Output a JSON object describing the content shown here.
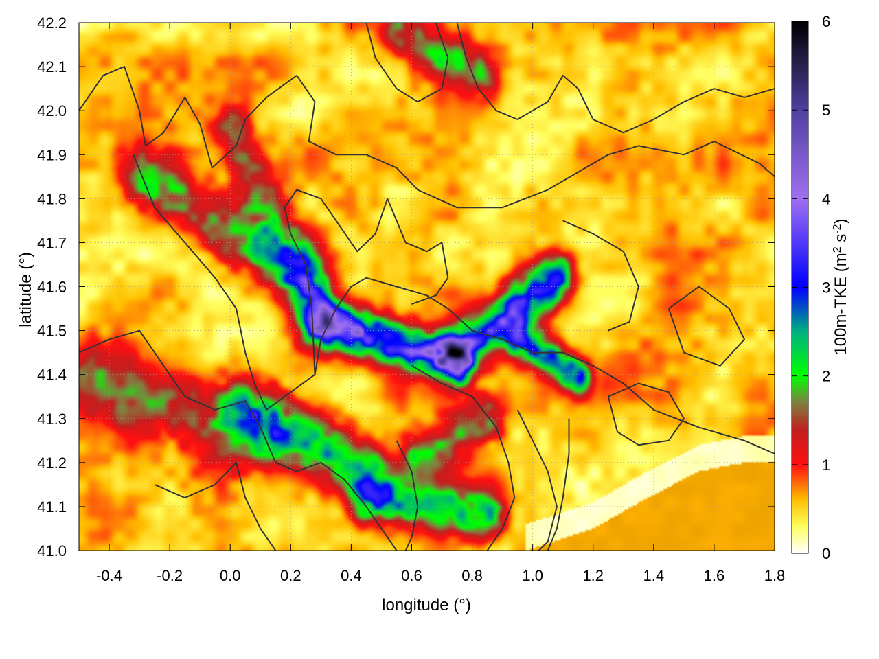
{
  "chart_data": {
    "type": "heatmap",
    "title": "",
    "xlabel": "longitude (°)",
    "ylabel": "latitude (°)",
    "xlim": [
      -0.5,
      1.8
    ],
    "ylim": [
      41.0,
      42.2
    ],
    "x_ticks": [
      -0.4,
      -0.2,
      0.0,
      0.2,
      0.4,
      0.6,
      0.8,
      1.0,
      1.2,
      1.4,
      1.6,
      1.8
    ],
    "x_tick_labels": [
      "-0.4",
      "-0.2",
      "0.0",
      "0.2",
      "0.4",
      "0.6",
      "0.8",
      "1.0",
      "1.2",
      "1.4",
      "1.6",
      "1.8"
    ],
    "y_ticks": [
      41.0,
      41.1,
      41.2,
      41.3,
      41.4,
      41.5,
      41.6,
      41.7,
      41.8,
      41.9,
      42.0,
      42.1,
      42.2
    ],
    "y_tick_labels": [
      "41.0",
      "41.1",
      "41.2",
      "41.3",
      "41.4",
      "41.5",
      "41.6",
      "41.7",
      "41.8",
      "41.9",
      "42.0",
      "42.1",
      "42.2"
    ],
    "grid": true,
    "colorbar": {
      "label_main": "100m-TKE (m",
      "label_sup1": "2",
      "label_mid": " s",
      "label_sup2": "-2",
      "label_end": ")",
      "range": [
        0,
        6
      ],
      "ticks": [
        0,
        1,
        2,
        3,
        4,
        5,
        6
      ],
      "tick_labels": [
        "0",
        "1",
        "2",
        "3",
        "4",
        "5",
        "6"
      ],
      "colors": [
        {
          "value": 0.0,
          "color": "#ffffff"
        },
        {
          "value": 0.3,
          "color": "#ffff60"
        },
        {
          "value": 0.6,
          "color": "#ffc000"
        },
        {
          "value": 1.0,
          "color": "#ff1010"
        },
        {
          "value": 1.4,
          "color": "#c02020"
        },
        {
          "value": 1.7,
          "color": "#808040"
        },
        {
          "value": 2.0,
          "color": "#00ff00"
        },
        {
          "value": 2.5,
          "color": "#00b080"
        },
        {
          "value": 3.0,
          "color": "#0000ff"
        },
        {
          "value": 4.0,
          "color": "#a070f0"
        },
        {
          "value": 5.0,
          "color": "#5040a0"
        },
        {
          "value": 6.0,
          "color": "#000000"
        }
      ]
    },
    "field_features": [
      {
        "kind": "ridge",
        "lon0": 0.3,
        "lat0": 41.52,
        "lon1": 0.75,
        "lat1": 41.43,
        "peak": 3.2,
        "width": 0.035
      },
      {
        "kind": "ridge",
        "lon0": 0.75,
        "lat0": 41.45,
        "lon1": 1.08,
        "lat1": 41.62,
        "peak": 2.6,
        "width": 0.04
      },
      {
        "kind": "ridge",
        "lon0": -0.3,
        "lat0": 41.85,
        "lon1": 0.25,
        "lat1": 41.62,
        "peak": 1.5,
        "width": 0.05
      },
      {
        "kind": "ridge",
        "lon0": 0.0,
        "lat0": 41.95,
        "lon1": 0.28,
        "lat1": 41.55,
        "peak": 1.2,
        "width": 0.05
      },
      {
        "kind": "ridge",
        "lon0": 0.05,
        "lat0": 41.32,
        "lon1": 0.45,
        "lat1": 41.18,
        "peak": 1.8,
        "width": 0.05
      },
      {
        "kind": "ridge",
        "lon0": 0.45,
        "lat0": 41.12,
        "lon1": 0.85,
        "lat1": 41.08,
        "peak": 1.9,
        "width": 0.04
      },
      {
        "kind": "ridge",
        "lon0": -0.45,
        "lat0": 41.38,
        "lon1": 0.1,
        "lat1": 41.25,
        "peak": 1.1,
        "width": 0.06
      },
      {
        "kind": "ridge",
        "lon0": 0.95,
        "lat0": 41.48,
        "lon1": 1.15,
        "lat1": 41.4,
        "peak": 2.4,
        "width": 0.03
      },
      {
        "kind": "ridge",
        "lon0": 0.55,
        "lat0": 42.18,
        "lon1": 0.85,
        "lat1": 42.08,
        "peak": 1.3,
        "width": 0.04
      },
      {
        "kind": "ridge",
        "lon0": 0.85,
        "lat0": 41.3,
        "lon1": 0.62,
        "lat1": 41.22,
        "peak": 1.5,
        "width": 0.04
      }
    ],
    "sea_region": {
      "color": "#ffb000",
      "boundary": [
        [
          0.98,
          41.0
        ],
        [
          1.2,
          41.05
        ],
        [
          1.38,
          41.12
        ],
        [
          1.55,
          41.18
        ],
        [
          1.7,
          41.2
        ],
        [
          1.8,
          41.2
        ]
      ]
    },
    "contour_color": "#333333",
    "contours": [
      [
        [
          -0.5,
          42.0
        ],
        [
          -0.42,
          42.08
        ],
        [
          -0.35,
          42.1
        ],
        [
          -0.3,
          42.0
        ],
        [
          -0.28,
          41.92
        ],
        [
          -0.22,
          41.95
        ],
        [
          -0.15,
          42.03
        ],
        [
          -0.1,
          41.97
        ],
        [
          -0.06,
          41.87
        ],
        [
          0.02,
          41.92
        ],
        [
          0.05,
          41.98
        ],
        [
          0.12,
          42.03
        ],
        [
          0.18,
          42.06
        ],
        [
          0.22,
          42.08
        ],
        [
          0.28,
          42.02
        ],
        [
          0.26,
          41.93
        ],
        [
          0.35,
          41.9
        ],
        [
          0.45,
          41.9
        ],
        [
          0.55,
          41.87
        ],
        [
          0.62,
          41.82
        ],
        [
          0.75,
          41.78
        ],
        [
          0.9,
          41.78
        ],
        [
          1.05,
          41.82
        ],
        [
          1.15,
          41.86
        ],
        [
          1.25,
          41.9
        ],
        [
          1.35,
          41.92
        ],
        [
          1.5,
          41.9
        ],
        [
          1.6,
          41.93
        ],
        [
          1.75,
          41.88
        ],
        [
          1.8,
          41.85
        ]
      ],
      [
        [
          -0.32,
          41.9
        ],
        [
          -0.25,
          41.78
        ],
        [
          -0.15,
          41.7
        ],
        [
          -0.05,
          41.62
        ],
        [
          0.02,
          41.55
        ],
        [
          0.05,
          41.45
        ],
        [
          0.08,
          41.38
        ],
        [
          0.12,
          41.32
        ],
        [
          0.2,
          41.36
        ],
        [
          0.28,
          41.4
        ],
        [
          0.3,
          41.48
        ],
        [
          0.35,
          41.55
        ],
        [
          0.4,
          41.6
        ],
        [
          0.45,
          41.62
        ],
        [
          0.55,
          41.6
        ],
        [
          0.65,
          41.58
        ],
        [
          0.72,
          41.55
        ],
        [
          0.8,
          41.5
        ],
        [
          0.9,
          41.48
        ],
        [
          1.0,
          41.45
        ],
        [
          1.1,
          41.45
        ],
        [
          1.2,
          41.42
        ],
        [
          1.3,
          41.38
        ],
        [
          1.4,
          41.32
        ],
        [
          1.55,
          41.28
        ],
        [
          1.7,
          41.25
        ],
        [
          1.8,
          41.22
        ]
      ],
      [
        [
          -0.5,
          41.45
        ],
        [
          -0.4,
          41.48
        ],
        [
          -0.3,
          41.5
        ],
        [
          -0.22,
          41.42
        ],
        [
          -0.15,
          41.35
        ],
        [
          -0.05,
          41.32
        ],
        [
          0.05,
          41.34
        ],
        [
          0.1,
          41.28
        ],
        [
          0.15,
          41.2
        ],
        [
          0.22,
          41.18
        ],
        [
          0.3,
          41.2
        ],
        [
          0.38,
          41.16
        ],
        [
          0.45,
          41.1
        ],
        [
          0.5,
          41.05
        ],
        [
          0.55,
          41.0
        ]
      ],
      [
        [
          0.28,
          41.4
        ],
        [
          0.27,
          41.55
        ],
        [
          0.25,
          41.65
        ],
        [
          0.2,
          41.72
        ],
        [
          0.18,
          41.78
        ],
        [
          0.22,
          41.82
        ],
        [
          0.3,
          41.8
        ],
        [
          0.38,
          41.72
        ],
        [
          0.42,
          41.68
        ],
        [
          0.48,
          41.72
        ],
        [
          0.52,
          41.8
        ],
        [
          0.55,
          41.75
        ],
        [
          0.58,
          41.7
        ],
        [
          0.65,
          41.68
        ],
        [
          0.7,
          41.7
        ],
        [
          0.72,
          41.62
        ],
        [
          0.68,
          41.58
        ],
        [
          0.6,
          41.56
        ]
      ],
      [
        [
          0.6,
          41.42
        ],
        [
          0.7,
          41.38
        ],
        [
          0.8,
          41.35
        ],
        [
          0.88,
          41.28
        ],
        [
          0.92,
          41.2
        ],
        [
          0.94,
          41.12
        ],
        [
          0.9,
          41.05
        ],
        [
          0.85,
          41.0
        ]
      ],
      [
        [
          0.95,
          41.32
        ],
        [
          1.0,
          41.25
        ],
        [
          1.05,
          41.18
        ],
        [
          1.08,
          41.1
        ],
        [
          1.05,
          41.02
        ],
        [
          1.02,
          41.0
        ]
      ],
      [
        [
          1.12,
          41.3
        ],
        [
          1.12,
          41.22
        ],
        [
          1.1,
          41.12
        ],
        [
          1.08,
          41.05
        ],
        [
          1.05,
          41.0
        ]
      ],
      [
        [
          1.25,
          41.35
        ],
        [
          1.35,
          41.38
        ],
        [
          1.45,
          41.36
        ],
        [
          1.5,
          41.3
        ],
        [
          1.45,
          41.25
        ],
        [
          1.35,
          41.24
        ],
        [
          1.28,
          41.27
        ],
        [
          1.25,
          41.35
        ]
      ],
      [
        [
          0.75,
          42.2
        ],
        [
          0.78,
          42.12
        ],
        [
          0.82,
          42.05
        ],
        [
          0.88,
          42.0
        ],
        [
          0.95,
          41.98
        ],
        [
          1.05,
          42.02
        ],
        [
          1.1,
          42.08
        ],
        [
          1.15,
          42.05
        ],
        [
          1.2,
          41.98
        ],
        [
          1.3,
          41.95
        ],
        [
          1.4,
          41.98
        ],
        [
          1.5,
          42.02
        ],
        [
          1.6,
          42.05
        ],
        [
          1.7,
          42.03
        ],
        [
          1.8,
          42.05
        ]
      ],
      [
        [
          0.45,
          42.2
        ],
        [
          0.48,
          42.12
        ],
        [
          0.55,
          42.05
        ],
        [
          0.62,
          42.02
        ],
        [
          0.7,
          42.05
        ],
        [
          0.72,
          42.12
        ],
        [
          0.68,
          42.2
        ]
      ],
      [
        [
          -0.25,
          41.15
        ],
        [
          -0.15,
          41.12
        ],
        [
          -0.05,
          41.15
        ],
        [
          0.02,
          41.2
        ],
        [
          0.05,
          41.12
        ],
        [
          0.1,
          41.05
        ],
        [
          0.15,
          41.0
        ]
      ],
      [
        [
          0.55,
          41.25
        ],
        [
          0.6,
          41.18
        ],
        [
          0.62,
          41.1
        ],
        [
          0.6,
          41.03
        ],
        [
          0.58,
          41.0
        ]
      ],
      [
        [
          1.1,
          41.75
        ],
        [
          1.2,
          41.72
        ],
        [
          1.3,
          41.68
        ],
        [
          1.35,
          41.6
        ],
        [
          1.32,
          41.52
        ],
        [
          1.25,
          41.5
        ]
      ],
      [
        [
          1.45,
          41.55
        ],
        [
          1.55,
          41.6
        ],
        [
          1.65,
          41.55
        ],
        [
          1.7,
          41.48
        ],
        [
          1.62,
          41.42
        ],
        [
          1.5,
          41.45
        ],
        [
          1.45,
          41.55
        ]
      ]
    ]
  }
}
